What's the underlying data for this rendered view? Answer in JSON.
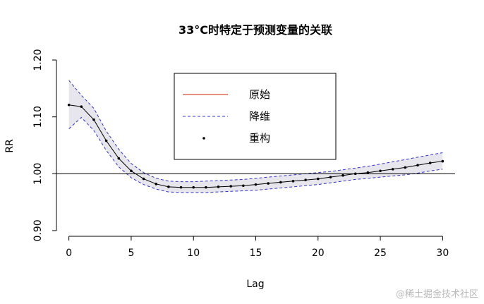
{
  "chart_data": {
    "type": "line",
    "title": "33°C时特定于预测变量的关联",
    "xlabel": "Lag",
    "ylabel": "RR",
    "xlim": [
      -1,
      31
    ],
    "ylim": [
      0.89,
      1.21
    ],
    "xticks": [
      0,
      5,
      10,
      15,
      20,
      25,
      30
    ],
    "yticks": [
      0.9,
      1.0,
      1.1,
      1.2
    ],
    "ytick_labels": [
      "0.90",
      "1.00",
      "1.10",
      "1.20"
    ],
    "reference_line": 1.0,
    "legend": {
      "position": "top-center",
      "entries": [
        {
          "label": "原始",
          "style": "line",
          "color": "#cc2200"
        },
        {
          "label": "降维",
          "style": "dashed",
          "color": "#3333cc"
        },
        {
          "label": "重构",
          "style": "point",
          "color": "#000000"
        }
      ]
    },
    "x": [
      0,
      1,
      2,
      3,
      4,
      5,
      6,
      7,
      8,
      9,
      10,
      11,
      12,
      13,
      14,
      15,
      16,
      17,
      18,
      19,
      20,
      21,
      22,
      23,
      24,
      25,
      26,
      27,
      28,
      29,
      30
    ],
    "series": [
      {
        "name": "原始",
        "values": [
          1.121,
          1.118,
          1.095,
          1.058,
          1.027,
          1.005,
          0.991,
          0.982,
          0.977,
          0.976,
          0.976,
          0.976,
          0.977,
          0.978,
          0.979,
          0.981,
          0.983,
          0.985,
          0.987,
          0.989,
          0.991,
          0.994,
          0.997,
          1.0,
          1.002,
          1.005,
          1.008,
          1.011,
          1.015,
          1.019,
          1.022
        ]
      },
      {
        "name": "降维",
        "values": [
          1.121,
          1.118,
          1.095,
          1.058,
          1.027,
          1.005,
          0.991,
          0.982,
          0.977,
          0.976,
          0.976,
          0.976,
          0.977,
          0.978,
          0.979,
          0.981,
          0.983,
          0.985,
          0.987,
          0.989,
          0.991,
          0.994,
          0.997,
          1.0,
          1.002,
          1.005,
          1.008,
          1.011,
          1.015,
          1.019,
          1.022
        ]
      },
      {
        "name": "重构",
        "values": [
          1.121,
          1.118,
          1.095,
          1.058,
          1.027,
          1.005,
          0.991,
          0.982,
          0.977,
          0.976,
          0.976,
          0.976,
          0.977,
          0.978,
          0.979,
          0.981,
          0.983,
          0.985,
          0.987,
          0.989,
          0.991,
          0.994,
          0.997,
          1.0,
          1.002,
          1.005,
          1.008,
          1.011,
          1.015,
          1.019,
          1.022
        ]
      }
    ],
    "ci_upper": [
      1.164,
      1.138,
      1.115,
      1.075,
      1.043,
      1.018,
      1.002,
      0.992,
      0.987,
      0.986,
      0.986,
      0.987,
      0.988,
      0.989,
      0.99,
      0.992,
      0.994,
      0.996,
      0.998,
      1.0,
      1.002,
      1.004,
      1.007,
      1.01,
      1.013,
      1.017,
      1.021,
      1.025,
      1.029,
      1.033,
      1.037
    ],
    "ci_lower": [
      1.079,
      1.099,
      1.076,
      1.041,
      1.012,
      0.993,
      0.981,
      0.973,
      0.968,
      0.967,
      0.967,
      0.967,
      0.968,
      0.969,
      0.97,
      0.971,
      0.973,
      0.975,
      0.977,
      0.979,
      0.981,
      0.984,
      0.987,
      0.99,
      0.992,
      0.994,
      0.996,
      0.998,
      1.001,
      1.005,
      1.008
    ],
    "colors": {
      "band": "#e6e6ec",
      "band_edge": "#3333cc",
      "line": "#000000",
      "points": "#000000",
      "reference": "#000000"
    }
  },
  "watermark": "@稀土掘金技术社区"
}
